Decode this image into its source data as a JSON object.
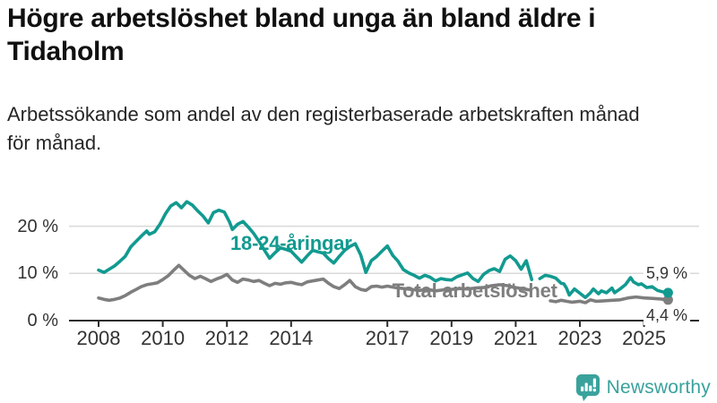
{
  "header": {
    "title_lines": [
      "Högre arbetslöshet bland unga än bland äldre i",
      "Tidaholm"
    ],
    "subtitle_lines": [
      "Arbetssökande som andel av den registerbaserade arbetskraften månad",
      "för månad."
    ]
  },
  "chart_data": {
    "type": "line",
    "title": "Högre arbetslöshet bland unga än bland äldre i Tidaholm",
    "subtitle": "Arbetssökande som andel av den registerbaserade arbetskraften månad för månad.",
    "unit": "percent of registered labour force",
    "grid": "horizontal only",
    "legend_position": "labels on lines",
    "colors": {
      "youth_line": "#129a90",
      "total_line": "#7e7e7e",
      "gridline": "#d9d9d9",
      "axis": "#2d2d2d",
      "axis_text": "#333333"
    },
    "x_axis": {
      "range": [
        2008,
        2025.9
      ],
      "ticks": [
        {
          "v": 2008,
          "label": "2008"
        },
        {
          "v": 2010,
          "label": "2010"
        },
        {
          "v": 2012,
          "label": "2012"
        },
        {
          "v": 2014,
          "label": "2014"
        },
        {
          "v": 2017,
          "label": "2017"
        },
        {
          "v": 2019,
          "label": "2019"
        },
        {
          "v": 2021,
          "label": "2021"
        },
        {
          "v": 2023,
          "label": "2023"
        },
        {
          "v": 2025,
          "label": "2025"
        }
      ]
    },
    "y_axis": {
      "range": [
        0,
        28
      ],
      "gridlines": [
        10,
        20
      ],
      "ticks": [
        {
          "v": 0,
          "label": "0 %"
        },
        {
          "v": 10,
          "label": "10 %"
        },
        {
          "v": 20,
          "label": "20 %"
        }
      ]
    },
    "series": [
      {
        "name": "Total arbetslöshet",
        "color": "#7e7e7e",
        "end_label": "4,4 %",
        "end_value": 4.4,
        "label_pos": {
          "x": 2017.15,
          "y": 6.2,
          "anchor": "start"
        },
        "points": [
          [
            2008.0,
            4.8
          ],
          [
            2008.17,
            4.5
          ],
          [
            2008.33,
            4.3
          ],
          [
            2008.5,
            4.5
          ],
          [
            2008.67,
            4.8
          ],
          [
            2008.83,
            5.3
          ],
          [
            2009.0,
            6.0
          ],
          [
            2009.17,
            6.6
          ],
          [
            2009.33,
            7.2
          ],
          [
            2009.5,
            7.6
          ],
          [
            2009.67,
            7.8
          ],
          [
            2009.83,
            8.0
          ],
          [
            2010.0,
            8.7
          ],
          [
            2010.17,
            9.5
          ],
          [
            2010.33,
            10.6
          ],
          [
            2010.5,
            11.7
          ],
          [
            2010.67,
            10.6
          ],
          [
            2010.83,
            9.6
          ],
          [
            2011.0,
            8.9
          ],
          [
            2011.17,
            9.4
          ],
          [
            2011.33,
            8.9
          ],
          [
            2011.5,
            8.3
          ],
          [
            2011.67,
            8.8
          ],
          [
            2011.83,
            9.2
          ],
          [
            2012.0,
            9.8
          ],
          [
            2012.17,
            8.6
          ],
          [
            2012.33,
            8.1
          ],
          [
            2012.5,
            8.8
          ],
          [
            2012.67,
            8.6
          ],
          [
            2012.83,
            8.3
          ],
          [
            2013.0,
            8.5
          ],
          [
            2013.17,
            7.9
          ],
          [
            2013.33,
            7.4
          ],
          [
            2013.5,
            7.9
          ],
          [
            2013.67,
            7.7
          ],
          [
            2013.83,
            8.0
          ],
          [
            2014.0,
            8.1
          ],
          [
            2014.17,
            7.8
          ],
          [
            2014.33,
            7.6
          ],
          [
            2014.5,
            8.2
          ],
          [
            2014.67,
            8.4
          ],
          [
            2014.83,
            8.6
          ],
          [
            2015.0,
            8.8
          ],
          [
            2015.17,
            7.9
          ],
          [
            2015.33,
            7.2
          ],
          [
            2015.5,
            6.8
          ],
          [
            2015.67,
            7.6
          ],
          [
            2015.83,
            8.5
          ],
          [
            2016.0,
            7.2
          ],
          [
            2016.17,
            6.6
          ],
          [
            2016.33,
            6.4
          ],
          [
            2016.5,
            7.2
          ],
          [
            2016.67,
            7.3
          ],
          [
            2016.83,
            7.1
          ],
          [
            2017.0,
            7.3
          ],
          [
            2017.25,
            7.0
          ],
          [
            2017.5,
            6.8
          ],
          [
            2017.75,
            6.6
          ],
          [
            2018.0,
            6.4
          ],
          [
            2018.25,
            6.6
          ],
          [
            2018.5,
            6.3
          ],
          [
            2018.75,
            6.5
          ],
          [
            2019.0,
            6.6
          ],
          [
            2019.25,
            6.8
          ],
          [
            2019.5,
            6.7
          ],
          [
            2019.75,
            6.9
          ],
          [
            2020.0,
            7.0
          ],
          [
            2020.25,
            7.4
          ],
          [
            2020.5,
            7.6
          ],
          [
            2020.75,
            7.4
          ],
          [
            2021.0,
            7.0
          ],
          [
            2021.25,
            6.7
          ],
          [
            2021.42,
            6.5
          ],
          null,
          [
            2022.08,
            4.2
          ],
          [
            2022.25,
            4.0
          ],
          [
            2022.42,
            4.3
          ],
          [
            2022.58,
            4.1
          ],
          [
            2022.75,
            3.9
          ],
          [
            2023.0,
            4.1
          ],
          [
            2023.17,
            3.8
          ],
          [
            2023.33,
            4.4
          ],
          [
            2023.5,
            4.1
          ],
          [
            2023.75,
            4.2
          ],
          [
            2024.0,
            4.3
          ],
          [
            2024.25,
            4.4
          ],
          [
            2024.5,
            4.8
          ],
          [
            2024.75,
            5.0
          ],
          [
            2025.0,
            4.8
          ],
          [
            2025.25,
            4.7
          ],
          [
            2025.5,
            4.6
          ],
          [
            2025.75,
            4.4
          ]
        ]
      },
      {
        "name": "18-24-åringar",
        "color": "#129a90",
        "end_label": "5,9 %",
        "end_value": 5.9,
        "label_pos": {
          "x": 2014.0,
          "y": 16.3,
          "anchor": "middle"
        },
        "points": [
          [
            2008.0,
            10.7
          ],
          [
            2008.17,
            10.2
          ],
          [
            2008.33,
            10.9
          ],
          [
            2008.5,
            11.6
          ],
          [
            2008.67,
            12.6
          ],
          [
            2008.83,
            13.6
          ],
          [
            2009.0,
            15.6
          ],
          [
            2009.17,
            16.8
          ],
          [
            2009.33,
            17.9
          ],
          [
            2009.5,
            19.0
          ],
          [
            2009.58,
            18.3
          ],
          [
            2009.75,
            18.8
          ],
          [
            2009.92,
            20.5
          ],
          [
            2010.08,
            22.6
          ],
          [
            2010.25,
            24.3
          ],
          [
            2010.42,
            25.0
          ],
          [
            2010.58,
            23.9
          ],
          [
            2010.75,
            25.2
          ],
          [
            2010.92,
            24.5
          ],
          [
            2011.08,
            23.3
          ],
          [
            2011.25,
            22.2
          ],
          [
            2011.42,
            20.7
          ],
          [
            2011.58,
            22.9
          ],
          [
            2011.75,
            23.4
          ],
          [
            2011.92,
            23.0
          ],
          [
            2012.08,
            20.9
          ],
          [
            2012.17,
            19.3
          ],
          [
            2012.33,
            20.4
          ],
          [
            2012.5,
            21.0
          ],
          [
            2012.67,
            19.8
          ],
          [
            2012.83,
            18.5
          ],
          [
            2013.0,
            16.8
          ],
          [
            2013.17,
            14.9
          ],
          [
            2013.33,
            13.2
          ],
          [
            2013.5,
            14.4
          ],
          [
            2013.67,
            15.4
          ],
          [
            2013.83,
            15.1
          ],
          [
            2014.0,
            14.7
          ],
          [
            2014.17,
            13.5
          ],
          [
            2014.33,
            12.4
          ],
          [
            2014.5,
            13.7
          ],
          [
            2014.67,
            14.9
          ],
          [
            2014.83,
            14.6
          ],
          [
            2015.0,
            14.3
          ],
          [
            2015.17,
            13.1
          ],
          [
            2015.33,
            12.2
          ],
          [
            2015.5,
            13.6
          ],
          [
            2015.67,
            14.9
          ],
          [
            2015.83,
            15.7
          ],
          [
            2016.0,
            16.3
          ],
          [
            2016.17,
            13.9
          ],
          [
            2016.33,
            10.2
          ],
          [
            2016.5,
            12.7
          ],
          [
            2016.67,
            13.6
          ],
          [
            2016.83,
            14.7
          ],
          [
            2017.0,
            15.8
          ],
          [
            2017.17,
            13.8
          ],
          [
            2017.33,
            12.6
          ],
          [
            2017.5,
            10.8
          ],
          [
            2017.67,
            10.1
          ],
          [
            2017.83,
            9.6
          ],
          [
            2018.0,
            9.0
          ],
          [
            2018.17,
            9.6
          ],
          [
            2018.33,
            9.2
          ],
          [
            2018.5,
            8.4
          ],
          [
            2018.67,
            8.9
          ],
          [
            2018.83,
            8.7
          ],
          [
            2019.0,
            8.6
          ],
          [
            2019.17,
            9.3
          ],
          [
            2019.33,
            9.7
          ],
          [
            2019.5,
            10.1
          ],
          [
            2019.67,
            8.9
          ],
          [
            2019.83,
            8.3
          ],
          [
            2020.0,
            9.8
          ],
          [
            2020.17,
            10.6
          ],
          [
            2020.33,
            11.0
          ],
          [
            2020.5,
            10.4
          ],
          [
            2020.67,
            13.0
          ],
          [
            2020.83,
            13.7
          ],
          [
            2021.0,
            12.7
          ],
          [
            2021.17,
            10.9
          ],
          [
            2021.33,
            12.7
          ],
          [
            2021.5,
            8.7
          ],
          null,
          [
            2021.75,
            8.9
          ],
          [
            2021.92,
            9.6
          ],
          [
            2022.08,
            9.4
          ],
          [
            2022.25,
            9.0
          ],
          [
            2022.42,
            7.9
          ],
          [
            2022.5,
            7.8
          ],
          [
            2022.58,
            6.9
          ],
          [
            2022.67,
            5.4
          ],
          [
            2022.83,
            6.7
          ],
          [
            2023.0,
            5.8
          ],
          [
            2023.17,
            4.9
          ],
          [
            2023.33,
            5.9
          ],
          [
            2023.42,
            6.7
          ],
          [
            2023.58,
            5.7
          ],
          [
            2023.67,
            6.3
          ],
          [
            2023.83,
            5.9
          ],
          [
            2024.0,
            6.9
          ],
          [
            2024.08,
            5.9
          ],
          [
            2024.25,
            6.7
          ],
          [
            2024.42,
            7.6
          ],
          [
            2024.58,
            9.1
          ],
          [
            2024.67,
            8.2
          ],
          [
            2024.83,
            7.6
          ],
          [
            2024.92,
            7.8
          ],
          [
            2025.08,
            7.0
          ],
          [
            2025.25,
            7.2
          ],
          [
            2025.42,
            6.4
          ],
          [
            2025.58,
            6.1
          ],
          [
            2025.75,
            5.9
          ]
        ]
      }
    ]
  },
  "branding": {
    "logo_text": "Newsworthy",
    "logo_color": "#3aa29c",
    "logo_icon": "bar-chart-speech-bubble-icon"
  }
}
